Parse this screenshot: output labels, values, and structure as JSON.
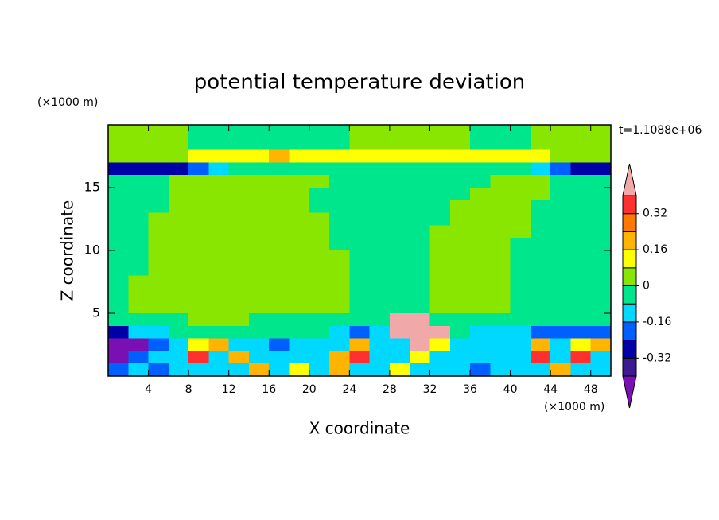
{
  "chart_data": {
    "type": "contour",
    "title": "potential temperature deviation",
    "y_unit": "(×1000 m)",
    "x_unit": "(×1000 m)",
    "xlabel": "X coordinate",
    "ylabel": "Z coordinate",
    "annotation": "t=1.1088e+06",
    "xlim": [
      0,
      50
    ],
    "ylim": [
      0,
      20
    ],
    "xticks": [
      4,
      8,
      12,
      16,
      20,
      24,
      28,
      32,
      36,
      40,
      44,
      48
    ],
    "yticks": [
      5,
      10,
      15
    ],
    "levels": [
      -0.4,
      -0.32,
      -0.24,
      -0.16,
      -0.08,
      0,
      0.08,
      0.16,
      0.24,
      0.32,
      0.4
    ],
    "colors": [
      "#7a10b4",
      "#3c1a90",
      "#0000a8",
      "#0060ff",
      "#00d8ff",
      "#00e68c",
      "#88e600",
      "#ffff00",
      "#ffb400",
      "#ff7800",
      "#ff3030",
      "#f0a8a8"
    ],
    "cbar_ticks": [
      -0.32,
      -0.16,
      0,
      0.16,
      0.32
    ],
    "x": [
      1,
      3,
      5,
      7,
      9,
      11,
      13,
      15,
      17,
      19,
      21,
      23,
      25,
      27,
      29,
      31,
      33,
      35,
      37,
      39,
      41,
      43,
      45,
      47,
      49
    ],
    "y": [
      19.5,
      18.5,
      17.5,
      16.5,
      15.5,
      14.5,
      13.5,
      12.5,
      11.5,
      10.5,
      9.5,
      8.5,
      7.5,
      6.5,
      5.5,
      4.5,
      3.5,
      2.5,
      1.5,
      0.5
    ],
    "values": [
      [
        0.04,
        0.04,
        0.04,
        0.04,
        -0.04,
        -0.04,
        -0.04,
        -0.04,
        -0.04,
        -0.04,
        -0.04,
        -0.04,
        0.04,
        0.04,
        0.04,
        0.04,
        0.04,
        0.04,
        -0.04,
        -0.04,
        -0.04,
        0.04,
        0.04,
        0.04,
        0.04
      ],
      [
        0.04,
        0.04,
        0.04,
        0.04,
        -0.04,
        -0.04,
        -0.04,
        -0.04,
        -0.04,
        -0.04,
        -0.04,
        -0.04,
        0.04,
        0.04,
        0.04,
        0.04,
        0.04,
        0.04,
        -0.04,
        -0.04,
        -0.04,
        0.04,
        0.04,
        0.04,
        0.04
      ],
      [
        0.04,
        0.04,
        0.04,
        0.04,
        0.12,
        0.12,
        0.12,
        0.12,
        0.2,
        0.12,
        0.12,
        0.12,
        0.12,
        0.12,
        0.12,
        0.12,
        0.12,
        0.12,
        0.12,
        0.12,
        0.12,
        0.12,
        0.04,
        0.04,
        0.04
      ],
      [
        -0.28,
        -0.28,
        -0.28,
        -0.28,
        -0.2,
        -0.12,
        -0.04,
        -0.04,
        -0.04,
        -0.04,
        -0.04,
        -0.04,
        -0.04,
        -0.04,
        -0.04,
        -0.04,
        -0.04,
        -0.04,
        -0.04,
        -0.04,
        -0.04,
        -0.12,
        -0.2,
        -0.28,
        -0.28
      ],
      [
        -0.04,
        -0.04,
        -0.04,
        0.04,
        0.04,
        0.04,
        0.04,
        0.04,
        0.04,
        0.04,
        0.04,
        -0.04,
        -0.04,
        -0.04,
        -0.04,
        -0.04,
        -0.04,
        -0.04,
        -0.04,
        0.04,
        0.04,
        0.04,
        -0.04,
        -0.04,
        -0.04
      ],
      [
        -0.04,
        -0.04,
        -0.04,
        0.04,
        0.04,
        0.04,
        0.04,
        0.04,
        0.04,
        0.04,
        -0.04,
        -0.04,
        -0.04,
        -0.04,
        -0.04,
        -0.04,
        -0.04,
        -0.04,
        0.04,
        0.04,
        0.04,
        0.04,
        -0.04,
        -0.04,
        -0.04
      ],
      [
        -0.04,
        -0.04,
        -0.04,
        0.04,
        0.04,
        0.04,
        0.04,
        0.04,
        0.04,
        0.04,
        -0.04,
        -0.04,
        -0.04,
        -0.04,
        -0.04,
        -0.04,
        -0.04,
        0.04,
        0.04,
        0.04,
        0.04,
        -0.04,
        -0.04,
        -0.04,
        -0.04
      ],
      [
        -0.04,
        -0.04,
        0.04,
        0.04,
        0.04,
        0.04,
        0.04,
        0.04,
        0.04,
        0.04,
        0.04,
        -0.04,
        -0.04,
        -0.04,
        -0.04,
        -0.04,
        -0.04,
        0.04,
        0.04,
        0.04,
        0.04,
        -0.04,
        -0.04,
        -0.04,
        -0.04
      ],
      [
        -0.04,
        -0.04,
        0.04,
        0.04,
        0.04,
        0.04,
        0.04,
        0.04,
        0.04,
        0.04,
        0.04,
        -0.04,
        -0.04,
        -0.04,
        -0.04,
        -0.04,
        0.04,
        0.04,
        0.04,
        0.04,
        0.04,
        -0.04,
        -0.04,
        -0.04,
        -0.04
      ],
      [
        -0.04,
        -0.04,
        0.04,
        0.04,
        0.04,
        0.04,
        0.04,
        0.04,
        0.04,
        0.04,
        0.04,
        -0.04,
        -0.04,
        -0.04,
        -0.04,
        -0.04,
        0.04,
        0.04,
        0.04,
        0.04,
        -0.04,
        -0.04,
        -0.04,
        -0.04,
        -0.04
      ],
      [
        -0.04,
        -0.04,
        0.04,
        0.04,
        0.04,
        0.04,
        0.04,
        0.04,
        0.04,
        0.04,
        0.04,
        0.04,
        -0.04,
        -0.04,
        -0.04,
        -0.04,
        0.04,
        0.04,
        0.04,
        0.04,
        -0.04,
        -0.04,
        -0.04,
        -0.04,
        -0.04
      ],
      [
        -0.04,
        -0.04,
        0.04,
        0.04,
        0.04,
        0.04,
        0.04,
        0.04,
        0.04,
        0.04,
        0.04,
        0.04,
        -0.04,
        -0.04,
        -0.04,
        -0.04,
        0.04,
        0.04,
        0.04,
        0.04,
        -0.04,
        -0.04,
        -0.04,
        -0.04,
        -0.04
      ],
      [
        -0.04,
        0.04,
        0.04,
        0.04,
        0.04,
        0.04,
        0.04,
        0.04,
        0.04,
        0.04,
        0.04,
        0.04,
        -0.04,
        -0.04,
        -0.04,
        -0.04,
        0.04,
        0.04,
        0.04,
        0.04,
        -0.04,
        -0.04,
        -0.04,
        -0.04,
        -0.04
      ],
      [
        -0.04,
        0.04,
        0.04,
        0.04,
        0.04,
        0.04,
        0.04,
        0.04,
        0.04,
        0.04,
        0.04,
        0.04,
        -0.04,
        -0.04,
        -0.04,
        -0.04,
        0.04,
        0.04,
        0.04,
        0.04,
        -0.04,
        -0.04,
        -0.04,
        -0.04,
        -0.04
      ],
      [
        -0.04,
        0.04,
        0.04,
        0.04,
        0.04,
        0.04,
        0.04,
        0.04,
        0.04,
        0.04,
        0.04,
        0.04,
        -0.04,
        -0.04,
        -0.04,
        -0.04,
        0.04,
        0.04,
        0.04,
        0.04,
        -0.04,
        -0.04,
        -0.04,
        -0.04,
        -0.04
      ],
      [
        -0.04,
        -0.04,
        -0.04,
        -0.04,
        0.04,
        0.04,
        0.04,
        -0.04,
        -0.04,
        -0.04,
        -0.04,
        -0.04,
        -0.04,
        -0.04,
        0.44,
        0.44,
        -0.04,
        -0.04,
        -0.04,
        -0.04,
        -0.04,
        -0.04,
        -0.04,
        -0.04,
        -0.04
      ],
      [
        -0.28,
        -0.12,
        -0.12,
        -0.04,
        -0.04,
        -0.04,
        -0.04,
        -0.04,
        -0.04,
        -0.04,
        -0.04,
        -0.12,
        -0.2,
        -0.12,
        0.44,
        0.44,
        0.44,
        -0.04,
        -0.12,
        -0.12,
        -0.12,
        -0.2,
        -0.2,
        -0.2,
        -0.2
      ],
      [
        -0.44,
        -0.44,
        -0.2,
        -0.12,
        0.12,
        0.2,
        -0.12,
        -0.12,
        -0.2,
        -0.12,
        -0.12,
        -0.12,
        0.2,
        -0.12,
        -0.12,
        0.44,
        0.12,
        -0.12,
        -0.12,
        -0.12,
        -0.12,
        0.2,
        -0.12,
        0.12,
        0.2
      ],
      [
        -0.44,
        -0.2,
        -0.12,
        -0.12,
        0.36,
        -0.12,
        0.2,
        -0.12,
        -0.12,
        -0.12,
        -0.12,
        0.2,
        0.36,
        -0.12,
        -0.12,
        0.12,
        -0.12,
        -0.12,
        -0.12,
        -0.12,
        -0.12,
        0.36,
        -0.12,
        0.36,
        -0.12
      ],
      [
        -0.2,
        -0.12,
        -0.2,
        -0.12,
        -0.12,
        -0.12,
        -0.12,
        0.2,
        -0.12,
        0.12,
        -0.12,
        0.2,
        -0.12,
        -0.12,
        0.12,
        -0.12,
        -0.12,
        -0.12,
        -0.2,
        -0.12,
        -0.12,
        -0.12,
        0.2,
        -0.12,
        -0.12
      ]
    ]
  }
}
